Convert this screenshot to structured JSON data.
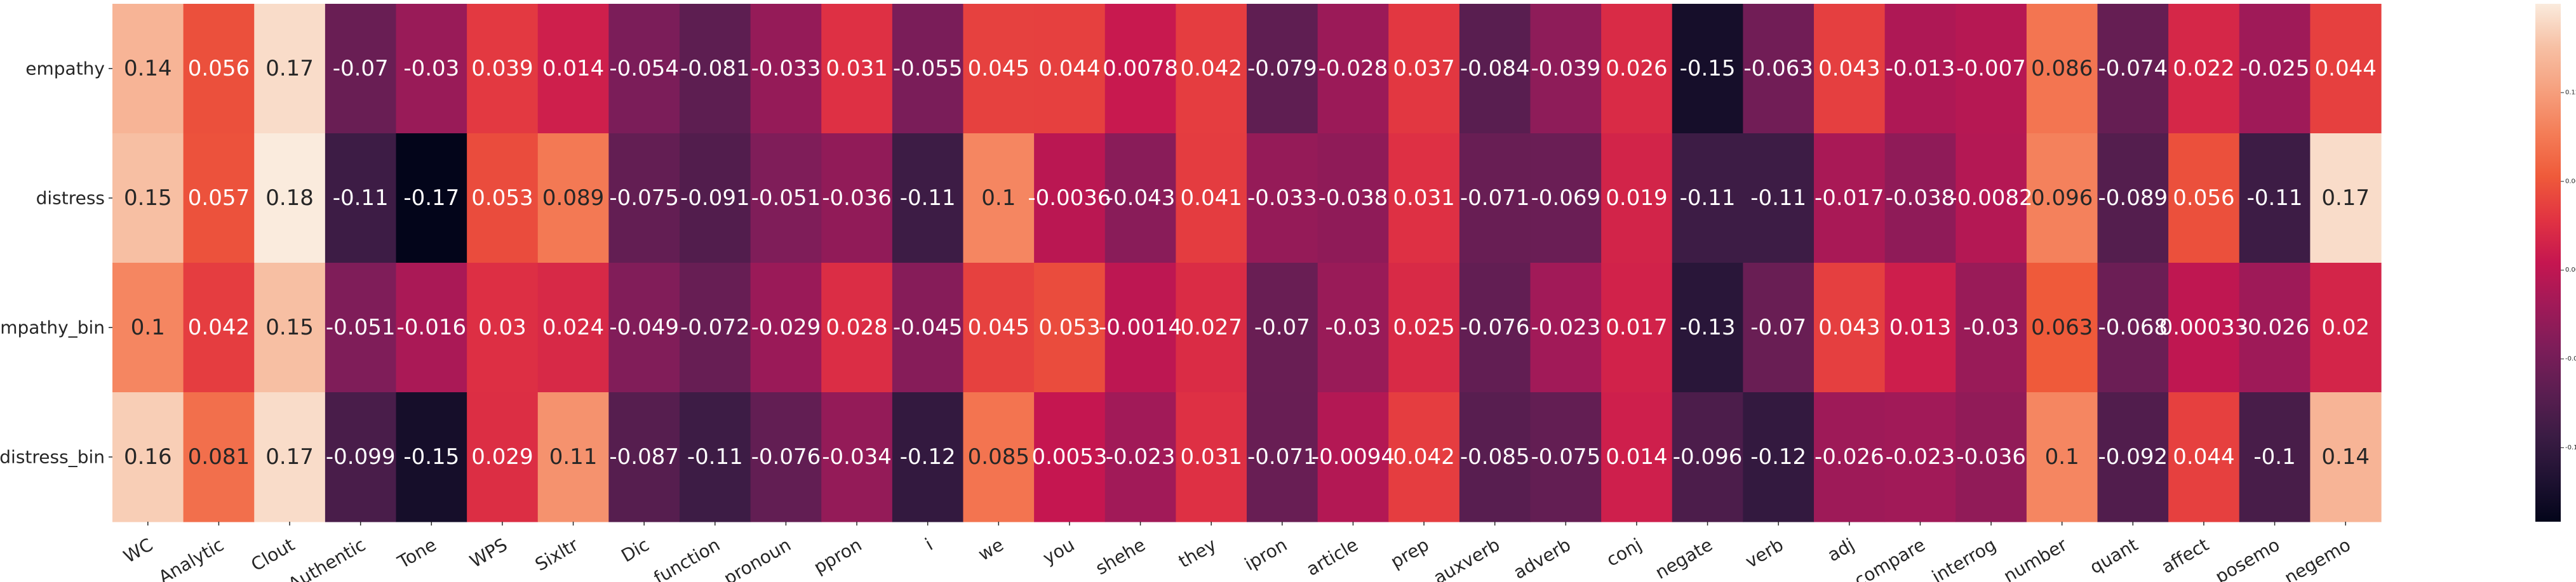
{
  "chart_data": {
    "type": "heatmap",
    "title": "",
    "xlabel": "",
    "ylabel": "",
    "columns": [
      "WC",
      "Analytic",
      "Clout",
      "Authentic",
      "Tone",
      "WPS",
      "Sixltr",
      "Dic",
      "function",
      "pronoun",
      "ppron",
      "i",
      "we",
      "you",
      "shehe",
      "they",
      "ipron",
      "article",
      "prep",
      "auxverb",
      "adverb",
      "conj",
      "negate",
      "verb",
      "adj",
      "compare",
      "interrog",
      "number",
      "quant",
      "affect",
      "posemo",
      "negemo"
    ],
    "rows": [
      "empathy",
      "distress",
      "empathy_bin",
      "distress_bin"
    ],
    "values": [
      [
        0.14,
        0.056,
        0.17,
        -0.07,
        -0.03,
        0.039,
        0.014,
        -0.054,
        -0.081,
        -0.033,
        0.031,
        -0.055,
        0.045,
        0.044,
        0.0078,
        0.042,
        -0.079,
        -0.028,
        0.037,
        -0.084,
        -0.039,
        0.026,
        -0.15,
        -0.063,
        0.043,
        -0.013,
        -0.007,
        0.086,
        -0.074,
        0.022,
        -0.025,
        0.044
      ],
      [
        0.15,
        0.057,
        0.18,
        -0.11,
        -0.17,
        0.053,
        0.089,
        -0.075,
        -0.091,
        -0.051,
        -0.036,
        -0.11,
        0.1,
        -0.0036,
        -0.043,
        0.041,
        -0.033,
        -0.038,
        0.031,
        -0.071,
        -0.069,
        0.019,
        -0.11,
        -0.11,
        -0.017,
        -0.038,
        -0.0082,
        0.096,
        -0.089,
        0.056,
        -0.11,
        0.17
      ],
      [
        0.1,
        0.042,
        0.15,
        -0.051,
        -0.016,
        0.03,
        0.024,
        -0.049,
        -0.072,
        -0.029,
        0.028,
        -0.045,
        0.045,
        0.053,
        -0.0014,
        0.027,
        -0.07,
        -0.03,
        0.025,
        -0.076,
        -0.023,
        0.017,
        -0.13,
        -0.07,
        0.043,
        0.013,
        -0.03,
        0.063,
        -0.068,
        0.00033,
        -0.026,
        0.02
      ],
      [
        0.16,
        0.081,
        0.17,
        -0.099,
        -0.15,
        0.029,
        0.11,
        -0.087,
        -0.11,
        -0.076,
        -0.034,
        -0.12,
        0.085,
        0.0053,
        -0.023,
        0.031,
        -0.071,
        -0.0094,
        0.042,
        -0.085,
        -0.075,
        0.014,
        -0.096,
        -0.12,
        -0.026,
        -0.023,
        -0.036,
        0.1,
        -0.092,
        0.044,
        -0.1,
        0.14
      ]
    ],
    "value_labels": [
      [
        "0.14",
        "0.056",
        "0.17",
        "-0.07",
        "-0.03",
        "0.039",
        "0.014",
        "-0.054",
        "-0.081",
        "-0.033",
        "0.031",
        "-0.055",
        "0.045",
        "0.044",
        "0.0078",
        "0.042",
        "-0.079",
        "-0.028",
        "0.037",
        "-0.084",
        "-0.039",
        "0.026",
        "-0.15",
        "-0.063",
        "0.043",
        "-0.013",
        "-0.007",
        "0.086",
        "-0.074",
        "0.022",
        "-0.025",
        "0.044"
      ],
      [
        "0.15",
        "0.057",
        "0.18",
        "-0.11",
        "-0.17",
        "0.053",
        "0.089",
        "-0.075",
        "-0.091",
        "-0.051",
        "-0.036",
        "-0.11",
        "0.1",
        "-0.0036",
        "-0.043",
        "0.041",
        "-0.033",
        "-0.038",
        "0.031",
        "-0.071",
        "-0.069",
        "0.019",
        "-0.11",
        "-0.11",
        "-0.017",
        "-0.038",
        "-0.0082",
        "0.096",
        "-0.089",
        "0.056",
        "-0.11",
        "0.17"
      ],
      [
        "0.1",
        "0.042",
        "0.15",
        "-0.051",
        "-0.016",
        "0.03",
        "0.024",
        "-0.049",
        "-0.072",
        "-0.029",
        "0.028",
        "-0.045",
        "0.045",
        "0.053",
        "-0.0014",
        "0.027",
        "-0.07",
        "-0.03",
        "0.025",
        "-0.076",
        "-0.023",
        "0.017",
        "-0.13",
        "-0.07",
        "0.043",
        "0.013",
        "-0.03",
        "0.063",
        "-0.068",
        "0.00033",
        "-0.026",
        "0.02"
      ],
      [
        "0.16",
        "0.081",
        "0.17",
        "-0.099",
        "-0.15",
        "0.029",
        "0.11",
        "-0.087",
        "-0.11",
        "-0.076",
        "-0.034",
        "-0.12",
        "0.085",
        "0.0053",
        "-0.023",
        "0.031",
        "-0.071",
        "-0.0094",
        "0.042",
        "-0.085",
        "-0.075",
        "0.014",
        "-0.096",
        "-0.12",
        "-0.026",
        "-0.023",
        "-0.036",
        "0.1",
        "-0.092",
        "0.044",
        "-0.1",
        "0.14"
      ]
    ],
    "vmin": -0.17,
    "vmax": 0.18,
    "colormap": "rocket",
    "colorbar": {
      "ticks": [
        -0.12,
        -0.06,
        0.0,
        0.06,
        0.12
      ],
      "tick_labels": [
        "-0.12",
        "-0.06",
        "0.00",
        "0.06",
        "0.12"
      ],
      "placement": "right"
    },
    "colors": [
      "#03051a",
      "#1f1232",
      "#3b1c44",
      "#5b1e51",
      "#7c1d59",
      "#a01a58",
      "#c51650",
      "#e13342",
      "#ef5a3a",
      "#f47d57",
      "#f6a07e",
      "#f7c0a4",
      "#faebdd"
    ]
  }
}
